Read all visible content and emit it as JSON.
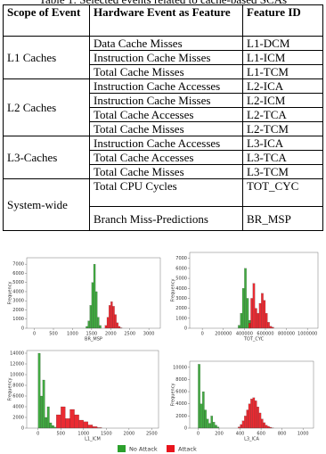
{
  "table": {
    "caption": "Table 1: Selected events related to cache-based SCAs",
    "header": [
      "Scope of Event",
      "Hardware Event as Feature",
      "Feature ID"
    ],
    "groups": [
      {
        "scope": "L1 Caches",
        "rows": [
          [
            "Data Cache Misses",
            "L1-DCM"
          ],
          [
            "Instruction Cache Misses",
            "L1-ICM"
          ],
          [
            "Total Cache Misses",
            "L1-TCM"
          ]
        ]
      },
      {
        "scope": "L2 Caches",
        "rows": [
          [
            "Instruction Cache Accesses",
            "L2-ICA"
          ],
          [
            "Instruction Cache Misses",
            "L2-ICM"
          ],
          [
            "Total Cache Accesses",
            "L2-TCA"
          ],
          [
            "Total Cache Misses",
            "L2-TCM"
          ]
        ]
      },
      {
        "scope": "L3-Caches",
        "rows": [
          [
            "Instruction Cache Accesses",
            "L3-ICA"
          ],
          [
            "Total Cache Accesses",
            "L3-TCA"
          ],
          [
            "Total Cache Misses",
            "L3-TCM"
          ]
        ]
      },
      {
        "scope": "System-wide",
        "rows": [
          [
            "Total CPU Cycles",
            "TOT_CYC"
          ],
          [
            "Branch Miss-Predictions",
            "BR_MSP"
          ]
        ]
      }
    ]
  },
  "chart_data": [
    {
      "type": "histogram",
      "x_label": "BR_MSP",
      "y_label": "Frequency",
      "xlim": [
        -200,
        3300
      ],
      "ylim": [
        0,
        7700
      ],
      "xticks": [
        0,
        500,
        1000,
        1500,
        2000,
        2500,
        3000
      ],
      "yticks": [
        0,
        1000,
        2000,
        3000,
        4000,
        5000,
        6000,
        7000
      ],
      "series": [
        {
          "name": "No Attack",
          "color": "#2ca02c",
          "bins": [
            1350,
            1400,
            1450,
            1500,
            1550,
            1600,
            1650,
            1700,
            1750
          ],
          "values": [
            200,
            800,
            2500,
            5000,
            7000,
            4000,
            1200,
            300
          ]
        },
        {
          "name": "Attack",
          "color": "#e8141c",
          "bins": [
            1850,
            1900,
            1950,
            2000,
            2050,
            2100,
            2150,
            2200,
            2250,
            2300
          ],
          "values": [
            300,
            1200,
            2500,
            2900,
            2400,
            1500,
            600,
            200,
            50
          ]
        }
      ]
    },
    {
      "type": "histogram",
      "x_label": "TOT_CYC",
      "y_label": "Frequency",
      "xlim": [
        -120000,
        1100000
      ],
      "ylim": [
        0,
        7600
      ],
      "xticks": [
        0,
        200000,
        400000,
        600000,
        800000,
        1000000
      ],
      "yticks": [
        0,
        1000,
        2000,
        3000,
        4000,
        5000,
        6000,
        7000
      ],
      "series": [
        {
          "color": "#2ca02c",
          "bins": [
            340000,
            360000,
            380000,
            400000,
            420000,
            440000,
            460000
          ],
          "values": [
            300,
            1500,
            4000,
            6000,
            3000,
            800
          ]
        },
        {
          "color": "#e8141c",
          "bins": [
            440000,
            460000,
            480000,
            500000,
            520000,
            540000,
            560000,
            580000,
            600000,
            620000,
            640000,
            660000,
            680000
          ],
          "values": [
            500,
            3000,
            4500,
            2000,
            1500,
            2500,
            3500,
            2800,
            1500,
            600,
            200,
            100
          ]
        }
      ]
    },
    {
      "type": "histogram",
      "x_label": "L1_ICM",
      "y_label": "Frequency",
      "xlim": [
        -250,
        2650
      ],
      "ylim": [
        0,
        14500
      ],
      "xticks": [
        0,
        500,
        1000,
        1500,
        2000,
        2500
      ],
      "yticks": [
        0,
        2000,
        4000,
        6000,
        8000,
        10000,
        12000,
        14000
      ],
      "series": [
        {
          "color": "#2ca02c",
          "bins": [
            0,
            50,
            100,
            150,
            200,
            250,
            300,
            350,
            400
          ],
          "values": [
            14000,
            6000,
            9000,
            2000,
            4000,
            1000,
            500,
            200
          ]
        },
        {
          "color": "#e8141c",
          "bins": [
            400,
            500,
            600,
            700,
            800,
            900,
            1000,
            1100,
            1200,
            1300,
            1400
          ],
          "values": [
            2500,
            4000,
            1800,
            3500,
            2500,
            1500,
            1200,
            600,
            300,
            100
          ]
        }
      ]
    },
    {
      "type": "histogram",
      "x_label": "L3_ICA",
      "y_label": "Frequency",
      "xlim": [
        -80,
        1100
      ],
      "ylim": [
        0,
        11000
      ],
      "xticks": [
        0,
        200,
        400,
        600,
        800,
        1000
      ],
      "yticks": [
        0,
        2000,
        4000,
        6000,
        8000,
        10000
      ],
      "series": [
        {
          "color": "#2ca02c",
          "bins": [
            0,
            20,
            40,
            60,
            80,
            100,
            120,
            140,
            160,
            180,
            200
          ],
          "values": [
            10500,
            4000,
            6000,
            3000,
            1500,
            800,
            2000,
            1000,
            500,
            200
          ]
        },
        {
          "color": "#e8141c",
          "bins": [
            380,
            400,
            420,
            440,
            460,
            480,
            500,
            520,
            540,
            560,
            580,
            600,
            620,
            640,
            660,
            680,
            700,
            720
          ],
          "values": [
            200,
            600,
            1200,
            2000,
            3000,
            4000,
            4800,
            5000,
            4500,
            3500,
            2500,
            1500,
            900,
            500,
            300,
            150,
            50
          ]
        }
      ]
    }
  ]
}
